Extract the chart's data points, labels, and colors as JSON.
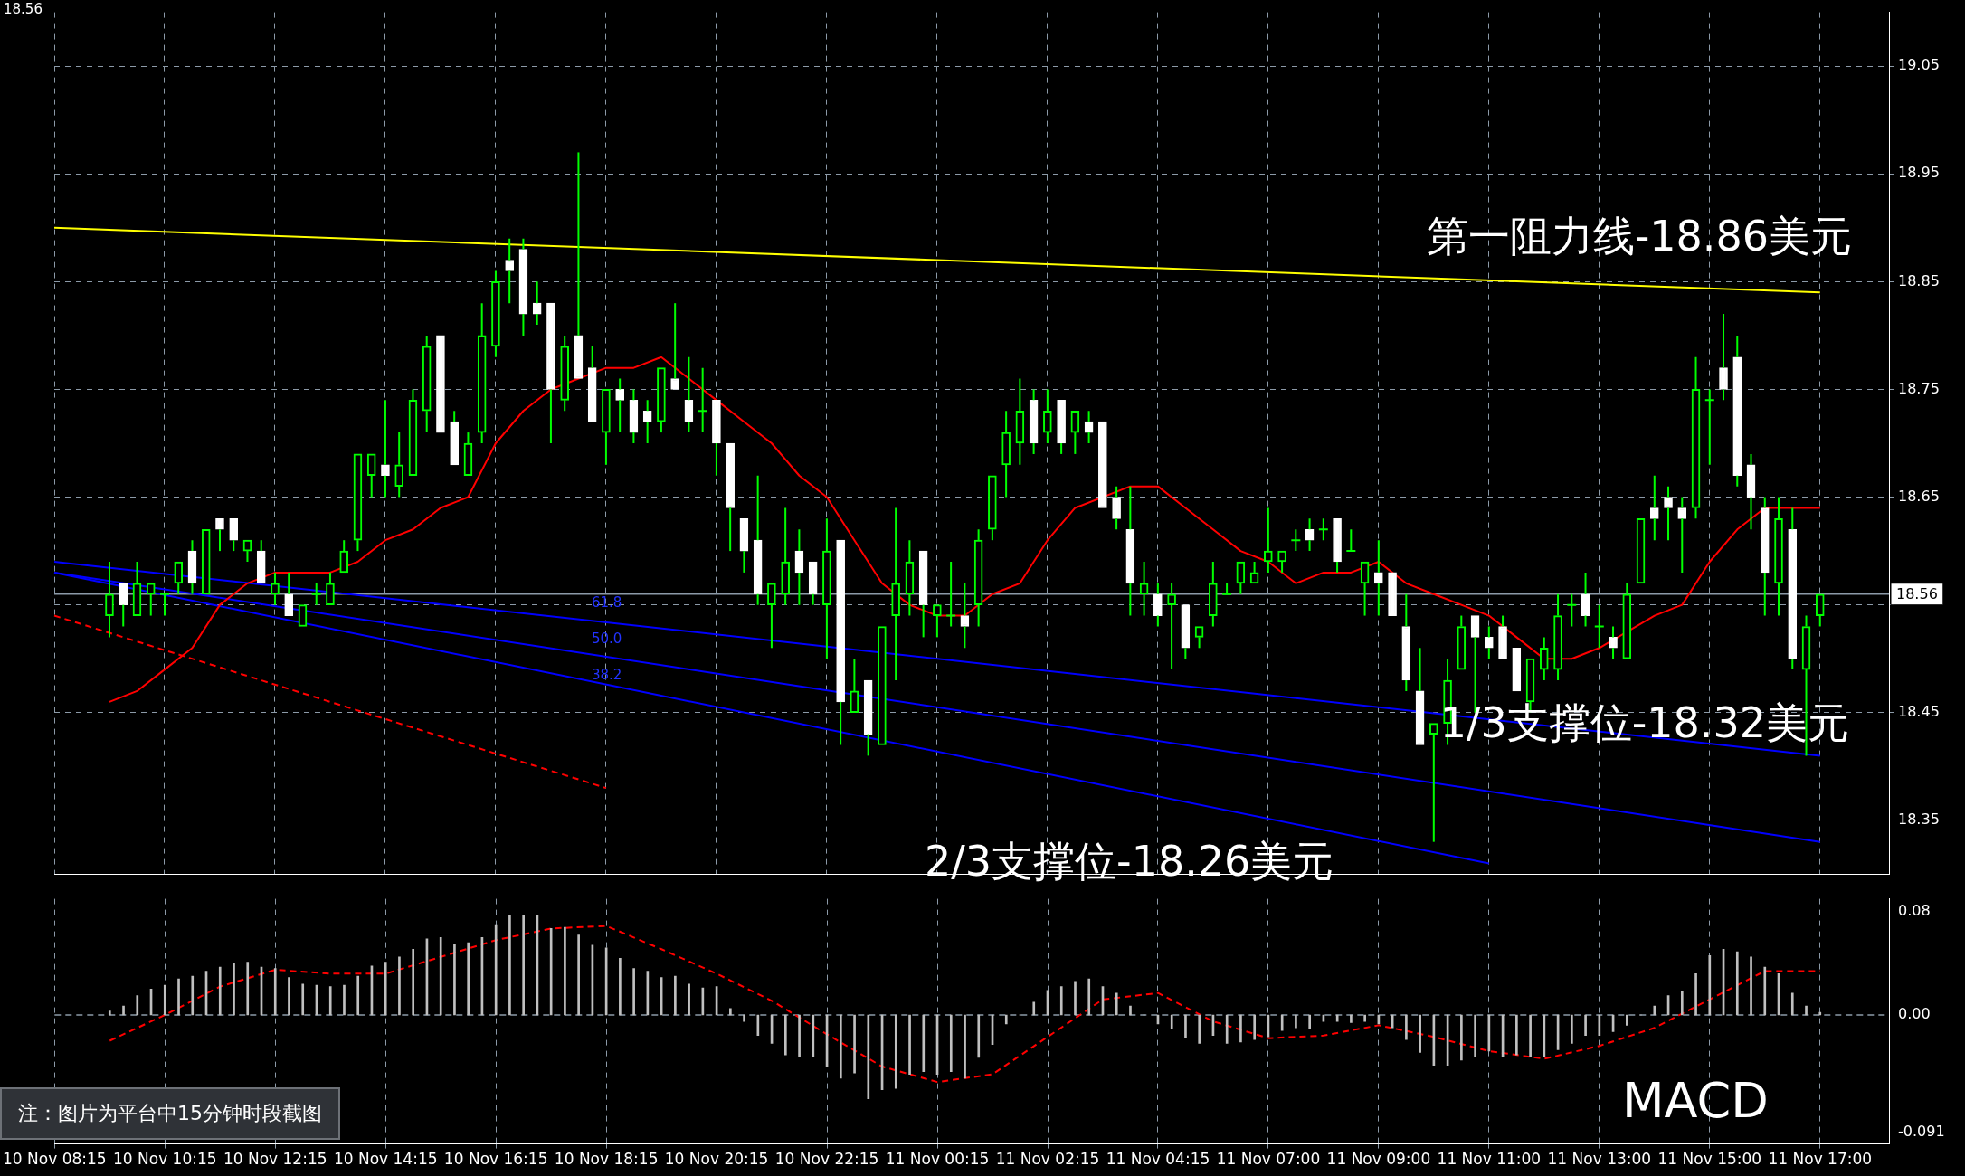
{
  "chart_data": [
    {
      "type": "candlestick",
      "color": "#00ff00",
      "colors": [
        null,
        null,
        null,
        null,
        "#00ff00",
        "#ffffff",
        "#00ff00",
        "#00ff00",
        "#00ff00",
        "#00ff00",
        "#ffffff",
        "#00ff00",
        "#ffffff",
        "#ffffff",
        "#00ff00",
        "#ffffff",
        "#00ff00",
        "#ffffff",
        "#00ff00",
        "#00ff00",
        "#00ff00",
        "#00ff00",
        "#00ff00",
        "#00ff00",
        "#ffffff",
        "#00ff00",
        "#00ff00",
        "#00ff00",
        "#ffffff",
        "#ffffff",
        "#00ff00",
        "#00ff00",
        "#00ff00",
        "#ffffff",
        "#ffffff",
        "#ffffff",
        "#ffffff",
        "#00ff00",
        "#ffffff",
        "#ffffff",
        "#00ff00",
        "#ffffff",
        "#ffffff",
        "#ffffff",
        "#00ff00",
        "#ffffff",
        "#ffffff",
        "#00ff00",
        "#ffffff",
        "#ffffff",
        "#ffffff",
        "#ffffff",
        "#00ff00",
        "#00ff00",
        "#ffffff",
        "#ffffff",
        "#00ff00",
        "#ffffff",
        "#00ff00",
        "#ffffff",
        "#00ff00",
        "#00ff00",
        "#00ff00",
        "#ffffff",
        "#00ff00",
        "#00ff00",
        "#ffffff",
        "#00ff00",
        "#00ff00",
        "#00ff00",
        "#00ff00",
        "#ffffff",
        "#00ff00",
        "#ffffff",
        "#00ff00",
        "#ffffff",
        "#ffffff",
        "#ffffff",
        "#ffffff",
        "#00ff00",
        "#ffffff",
        "#00ff00",
        "#ffffff",
        "#00ff00",
        "#00ff00",
        "#00ff00",
        "#00ff00",
        "#00ff00",
        "#00ff00",
        "#00ff00",
        "#00ff00",
        "#ffffff",
        "#00ff00",
        "#ffffff",
        "#00ff00",
        "#00ff00",
        "#ffffff",
        "#ffffff",
        "#ffffff",
        "#ffffff",
        "#00ff00",
        "#00ff00",
        "#00ff00",
        "#ffffff",
        "#ffffff",
        "#ffffff",
        "#ffffff",
        "#00ff00",
        "#00ff00",
        "#00ff00",
        "#00ff00",
        "#ffffff",
        "#00ff00",
        "#ffffff",
        "#00ff00",
        "#00ff00",
        "#ffffff",
        "#ffffff",
        "#ffffff",
        "#00ff00",
        "#00ff00",
        "#ffffff",
        "#ffffff",
        "#ffffff",
        "#ffffff",
        "#00ff00",
        "#ffffff",
        "#00ff00",
        "#00ff00",
        null,
        null,
        null,
        null,
        null
      ],
      "categories": [
        "10 Nov 08:15",
        null,
        null,
        null,
        null,
        null,
        null,
        null,
        "10 Nov 10:15",
        null,
        null,
        null,
        null,
        null,
        null,
        null,
        "10 Nov 12:15",
        null,
        null,
        null,
        null,
        null,
        null,
        null,
        "10 Nov 14:15",
        null,
        null,
        null,
        null,
        null,
        null,
        null,
        "10 Nov 16:15",
        null,
        null,
        null,
        null,
        null,
        null,
        null,
        "10 Nov 18:15",
        null,
        null,
        null,
        null,
        null,
        null,
        null,
        "10 Nov 20:15",
        null,
        null,
        null,
        null,
        null,
        null,
        null,
        "10 Nov 22:15",
        null,
        null,
        null,
        null,
        null,
        null,
        null,
        "11 Nov 00:15",
        null,
        null,
        null,
        null,
        null,
        null,
        null,
        "11 Nov 02:15",
        null,
        null,
        null,
        null,
        null,
        null,
        null,
        "11 Nov 04:15",
        null,
        null,
        null,
        null,
        null,
        null,
        null,
        "11 Nov 07:00",
        null,
        null,
        null,
        null,
        null,
        null,
        null,
        "11 Nov 09:00",
        null,
        null,
        null,
        null,
        null,
        null,
        null,
        "11 Nov 11:00",
        null,
        null,
        null,
        null,
        null,
        null,
        null,
        "11 Nov 13:00",
        null,
        null,
        null,
        null,
        null,
        null,
        null,
        "11 Nov 15:00",
        null,
        null,
        null,
        null,
        null,
        null,
        null,
        "11 Nov 17:00",
        null,
        null,
        null,
        null,
        null
      ],
      "ohlc": [
        null,
        null,
        null,
        null,
        [
          18.54,
          18.59,
          18.52,
          18.56
        ],
        [
          18.57,
          18.57,
          18.53,
          18.55
        ],
        [
          18.54,
          18.59,
          18.54,
          18.57
        ],
        [
          18.56,
          18.57,
          18.54,
          18.57
        ],
        [
          18.56,
          18.56,
          18.54,
          18.56
        ],
        [
          18.57,
          18.59,
          18.56,
          18.59
        ],
        [
          18.6,
          18.61,
          18.56,
          18.57
        ],
        [
          18.56,
          18.62,
          18.56,
          18.62
        ],
        [
          18.63,
          18.63,
          18.6,
          18.62
        ],
        [
          18.63,
          18.63,
          18.6,
          18.61
        ],
        [
          18.6,
          18.61,
          18.59,
          18.61
        ],
        [
          18.6,
          18.61,
          18.57,
          18.57
        ],
        [
          18.56,
          18.58,
          18.55,
          18.57
        ],
        [
          18.56,
          18.58,
          18.54,
          18.54
        ],
        [
          18.53,
          18.55,
          18.53,
          18.55
        ],
        [
          18.56,
          18.57,
          18.55,
          18.56
        ],
        [
          18.55,
          18.58,
          18.55,
          18.57
        ],
        [
          18.58,
          18.61,
          18.58,
          18.6
        ],
        [
          18.61,
          18.69,
          18.6,
          18.69
        ],
        [
          18.67,
          18.69,
          18.65,
          18.69
        ],
        [
          18.68,
          18.74,
          18.65,
          18.67
        ],
        [
          18.66,
          18.71,
          18.65,
          18.68
        ],
        [
          18.67,
          18.75,
          18.67,
          18.74
        ],
        [
          18.73,
          18.8,
          18.71,
          18.79
        ],
        [
          18.8,
          18.8,
          18.71,
          18.71
        ],
        [
          18.72,
          18.73,
          18.68,
          18.68
        ],
        [
          18.67,
          18.71,
          18.67,
          18.7
        ],
        [
          18.71,
          18.83,
          18.7,
          18.8
        ],
        [
          18.79,
          18.86,
          18.78,
          18.85
        ],
        [
          18.87,
          18.89,
          18.83,
          18.86
        ],
        [
          18.88,
          18.89,
          18.8,
          18.82
        ],
        [
          18.83,
          18.85,
          18.81,
          18.82
        ],
        [
          18.83,
          18.83,
          18.7,
          18.75
        ],
        [
          18.74,
          18.8,
          18.73,
          18.79
        ],
        [
          18.8,
          18.97,
          18.76,
          18.76
        ],
        [
          18.77,
          18.79,
          18.72,
          18.72
        ],
        [
          18.71,
          18.75,
          18.68,
          18.75
        ],
        [
          18.75,
          18.76,
          18.71,
          18.74
        ],
        [
          18.74,
          18.75,
          18.7,
          18.71
        ],
        [
          18.73,
          18.74,
          18.7,
          18.72
        ],
        [
          18.72,
          18.77,
          18.71,
          18.77
        ],
        [
          18.76,
          18.83,
          18.75,
          18.75
        ],
        [
          18.74,
          18.78,
          18.71,
          18.72
        ],
        [
          18.73,
          18.77,
          18.71,
          18.73
        ],
        [
          18.74,
          18.74,
          18.67,
          18.7
        ],
        [
          18.7,
          18.7,
          18.6,
          18.64
        ],
        [
          18.63,
          18.63,
          18.58,
          18.6
        ],
        [
          18.61,
          18.67,
          18.55,
          18.56
        ],
        [
          18.55,
          18.57,
          18.51,
          18.57
        ],
        [
          18.56,
          18.64,
          18.55,
          18.59
        ],
        [
          18.6,
          18.62,
          18.55,
          18.58
        ],
        [
          18.59,
          18.59,
          18.55,
          18.56
        ],
        [
          18.55,
          18.63,
          18.5,
          18.6
        ],
        [
          18.61,
          18.61,
          18.42,
          18.46
        ],
        [
          18.45,
          18.5,
          18.45,
          18.47
        ],
        [
          18.48,
          18.48,
          18.41,
          18.43
        ],
        [
          18.42,
          18.53,
          18.42,
          18.53
        ],
        [
          18.54,
          18.64,
          18.48,
          18.57
        ],
        [
          18.56,
          18.61,
          18.54,
          18.59
        ],
        [
          18.6,
          18.6,
          18.52,
          18.55
        ],
        [
          18.54,
          18.55,
          18.52,
          18.55
        ],
        [
          18.54,
          18.59,
          18.53,
          18.54
        ],
        [
          18.54,
          18.57,
          18.51,
          18.53
        ],
        [
          18.55,
          18.62,
          18.53,
          18.61
        ],
        [
          18.62,
          18.67,
          18.61,
          18.67
        ],
        [
          18.68,
          18.73,
          18.65,
          18.71
        ],
        [
          18.7,
          18.76,
          18.68,
          18.73
        ],
        [
          18.74,
          18.75,
          18.69,
          18.7
        ],
        [
          18.71,
          18.75,
          18.7,
          18.73
        ],
        [
          18.74,
          18.74,
          18.69,
          18.7
        ],
        [
          18.71,
          18.73,
          18.69,
          18.73
        ],
        [
          18.72,
          18.73,
          18.7,
          18.71
        ],
        [
          18.72,
          18.72,
          18.64,
          18.64
        ],
        [
          18.65,
          18.66,
          18.62,
          18.63
        ],
        [
          18.62,
          18.66,
          18.54,
          18.57
        ],
        [
          18.56,
          18.59,
          18.54,
          18.57
        ],
        [
          18.56,
          18.57,
          18.53,
          18.54
        ],
        [
          18.55,
          18.57,
          18.49,
          18.56
        ],
        [
          18.55,
          18.55,
          18.5,
          18.51
        ],
        [
          18.52,
          18.53,
          18.51,
          18.53
        ],
        [
          18.54,
          18.59,
          18.53,
          18.57
        ],
        [
          18.56,
          18.57,
          18.56,
          18.56
        ],
        [
          18.57,
          18.59,
          18.56,
          18.59
        ],
        [
          18.57,
          18.59,
          18.57,
          18.58
        ],
        [
          18.59,
          18.64,
          18.58,
          18.6
        ],
        [
          18.59,
          18.6,
          18.58,
          18.6
        ],
        [
          18.61,
          18.62,
          18.6,
          18.61
        ],
        [
          18.62,
          18.63,
          18.6,
          18.61
        ],
        [
          18.62,
          18.63,
          18.61,
          18.62
        ],
        [
          18.63,
          18.63,
          18.58,
          18.59
        ],
        [
          18.6,
          18.62,
          18.6,
          18.6
        ],
        [
          18.57,
          18.59,
          18.54,
          18.59
        ],
        [
          18.58,
          18.61,
          18.54,
          18.57
        ],
        [
          18.58,
          18.58,
          18.54,
          18.54
        ],
        [
          18.53,
          18.56,
          18.47,
          18.48
        ],
        [
          18.47,
          18.51,
          18.42,
          18.42
        ],
        [
          18.43,
          18.44,
          18.33,
          18.44
        ],
        [
          18.44,
          18.5,
          18.42,
          18.48
        ],
        [
          18.49,
          18.54,
          18.49,
          18.53
        ],
        [
          18.54,
          18.54,
          18.45,
          18.52
        ],
        [
          18.52,
          18.53,
          18.5,
          18.51
        ],
        [
          18.53,
          18.54,
          18.5,
          18.5
        ],
        [
          18.51,
          18.51,
          18.47,
          18.47
        ],
        [
          18.46,
          18.5,
          18.45,
          18.5
        ],
        [
          18.49,
          18.52,
          18.48,
          18.51
        ],
        [
          18.49,
          18.56,
          18.48,
          18.54
        ],
        [
          18.55,
          18.56,
          18.53,
          18.55
        ],
        [
          18.56,
          18.58,
          18.53,
          18.54
        ],
        [
          18.53,
          18.55,
          18.51,
          18.53
        ],
        [
          18.52,
          18.53,
          18.5,
          18.51
        ],
        [
          18.5,
          18.57,
          18.5,
          18.56
        ],
        [
          18.57,
          18.63,
          18.57,
          18.63
        ],
        [
          18.64,
          18.67,
          18.61,
          18.63
        ],
        [
          18.65,
          18.66,
          18.61,
          18.64
        ],
        [
          18.64,
          18.65,
          18.58,
          18.63
        ],
        [
          18.64,
          18.78,
          18.63,
          18.75
        ],
        [
          18.74,
          18.75,
          18.68,
          18.74
        ],
        [
          18.77,
          18.82,
          18.74,
          18.75
        ],
        [
          18.78,
          18.8,
          18.66,
          18.67
        ],
        [
          18.68,
          18.69,
          18.62,
          18.65
        ],
        [
          18.64,
          18.65,
          18.54,
          18.58
        ],
        [
          18.57,
          18.65,
          18.54,
          18.63
        ],
        [
          18.62,
          18.64,
          18.49,
          18.5
        ],
        [
          18.49,
          18.54,
          18.41,
          18.53
        ],
        [
          18.54,
          18.56,
          18.53,
          18.56
        ],
        null,
        null,
        null,
        null,
        null
      ],
      "series": [
        {
          "type": "line",
          "color": "#ff0000",
          "values": [
            null,
            null,
            null,
            null,
            18.46,
            null,
            18.47,
            null,
            18.49,
            null,
            18.51,
            null,
            18.55,
            null,
            18.57,
            null,
            18.58,
            null,
            18.58,
            null,
            18.58,
            null,
            18.59,
            null,
            18.61,
            null,
            18.62,
            null,
            18.64,
            null,
            18.65,
            null,
            18.7,
            null,
            18.73,
            null,
            18.75,
            null,
            null,
            null,
            18.77,
            null,
            18.77,
            null,
            18.78,
            null,
            18.76,
            null,
            18.74,
            null,
            18.72,
            null,
            18.7,
            null,
            18.67,
            null,
            18.65,
            null,
            18.61,
            null,
            18.57,
            null,
            18.55,
            null,
            18.54,
            null,
            18.54,
            null,
            18.56,
            null,
            18.57,
            null,
            18.61,
            null,
            18.64,
            null,
            null,
            null,
            18.66,
            null,
            18.66,
            null,
            18.64,
            null,
            18.62,
            null,
            18.6,
            null,
            18.59,
            null,
            18.57,
            null,
            18.58,
            null,
            18.58,
            null,
            18.59,
            null,
            18.57,
            null,
            18.56,
            null,
            18.55,
            null,
            18.54,
            null,
            18.52,
            null,
            18.5,
            null,
            18.5,
            null,
            18.51,
            null,
            null,
            null,
            18.54,
            null,
            18.55,
            null,
            18.59,
            null,
            18.62,
            null,
            18.64,
            null,
            18.64,
            null,
            18.64,
            null,
            null,
            null,
            null,
            null
          ]
        },
        {
          "type": "line",
          "color": "#ffff00",
          "x": [
            "10 Nov 08:15",
            "11 Nov 17:00"
          ],
          "values": [
            18.9,
            18.84
          ]
        },
        {
          "type": "line",
          "color": "#0000ff",
          "x": [
            "10 Nov 08:15",
            "11 Nov 17:00"
          ],
          "values": [
            18.59,
            18.41
          ]
        },
        {
          "type": "line",
          "color": "#0000ff",
          "x": [
            "10 Nov 08:15",
            "11 Nov 17:00"
          ],
          "values": [
            18.58,
            18.33
          ]
        },
        {
          "type": "line",
          "color": "#0000ff",
          "x": [
            "10 Nov 08:15",
            "11 Nov 11:00"
          ],
          "values": [
            18.58,
            18.31
          ]
        },
        {
          "type": "line",
          "color": "#ff0000",
          "line_style": "dashed",
          "x": [
            "10 Nov 08:15",
            "10 Nov 18:15"
          ],
          "values": [
            18.54,
            18.38
          ]
        }
      ],
      "ylim": [
        18.3,
        19.1
      ],
      "yticks": [
        18.35,
        18.45,
        {
          "value": 18.55,
          "label": null
        },
        18.65,
        18.75,
        18.85,
        18.95,
        19.05
      ],
      "grid": true,
      "tick_labels": "y",
      "ref_lines": [
        {
          "axis": "y",
          "value": 18.56,
          "label": "18.56",
          "color": "#8c9aa8"
        }
      ],
      "annotations": [
        "18.56",
        "第一阻力线-18.86美元",
        "1/3支撑位-18.32美元",
        "2/3支撑位-18.26美元",
        "61.8",
        "50.0",
        "38.2"
      ]
    },
    {
      "type": "bar",
      "categories": [
        "10 Nov 08:15",
        null,
        null,
        null,
        null,
        null,
        null,
        null,
        "10 Nov 10:15",
        null,
        null,
        null,
        null,
        null,
        null,
        null,
        "10 Nov 12:15",
        null,
        null,
        null,
        null,
        null,
        null,
        null,
        "10 Nov 14:15",
        null,
        null,
        null,
        null,
        null,
        null,
        null,
        "10 Nov 16:15",
        null,
        null,
        null,
        null,
        null,
        null,
        null,
        "10 Nov 18:15",
        null,
        null,
        null,
        null,
        null,
        null,
        null,
        "10 Nov 20:15",
        null,
        null,
        null,
        null,
        null,
        null,
        null,
        "10 Nov 22:15",
        null,
        null,
        null,
        null,
        null,
        null,
        null,
        "11 Nov 00:15",
        null,
        null,
        null,
        null,
        null,
        null,
        null,
        "11 Nov 02:15",
        null,
        null,
        null,
        null,
        null,
        null,
        null,
        "11 Nov 04:15",
        null,
        null,
        null,
        null,
        null,
        null,
        null,
        "11 Nov 07:00",
        null,
        null,
        null,
        null,
        null,
        null,
        null,
        "11 Nov 09:00",
        null,
        null,
        null,
        null,
        null,
        null,
        null,
        "11 Nov 11:00",
        null,
        null,
        null,
        null,
        null,
        null,
        null,
        "11 Nov 13:00",
        null,
        null,
        null,
        null,
        null,
        null,
        null,
        "11 Nov 15:00",
        null,
        null,
        null,
        null,
        null,
        null,
        null,
        "11 Nov 17:00",
        null,
        null,
        null,
        null,
        null
      ],
      "series": [
        {
          "type": "bar",
          "color": "#c0c0c0",
          "values": [
            null,
            null,
            null,
            null,
            0.003,
            0.007,
            0.015,
            0.02,
            0.023,
            0.028,
            0.03,
            0.034,
            0.037,
            0.04,
            0.041,
            0.037,
            0.036,
            0.029,
            0.024,
            0.023,
            0.022,
            0.023,
            0.03,
            0.038,
            0.041,
            0.045,
            0.051,
            0.059,
            0.06,
            0.055,
            0.056,
            0.06,
            0.07,
            0.077,
            0.077,
            0.077,
            0.067,
            0.068,
            0.062,
            0.054,
            0.052,
            0.044,
            0.036,
            0.034,
            0.029,
            0.03,
            0.024,
            0.021,
            0.022,
            0.005,
            -0.005,
            -0.016,
            -0.022,
            -0.031,
            -0.032,
            -0.032,
            -0.04,
            -0.049,
            -0.045,
            -0.065,
            -0.058,
            -0.057,
            -0.046,
            -0.044,
            -0.046,
            -0.044,
            -0.049,
            -0.033,
            -0.023,
            -0.007,
            0,
            0.01,
            0.019,
            0.022,
            0.026,
            0.028,
            0.022,
            0.017,
            0.007,
            0,
            -0.007,
            -0.011,
            -0.018,
            -0.022,
            -0.016,
            -0.022,
            -0.021,
            -0.019,
            -0.017,
            -0.012,
            -0.01,
            -0.011,
            -0.005,
            -0.005,
            -0.006,
            -0.005,
            -0.007,
            -0.01,
            -0.019,
            -0.029,
            -0.039,
            -0.039,
            -0.035,
            -0.032,
            -0.028,
            -0.032,
            -0.031,
            -0.032,
            -0.032,
            -0.027,
            -0.022,
            -0.016,
            -0.016,
            -0.013,
            -0.008,
            0,
            0.007,
            0.015,
            0.018,
            0.032,
            0.046,
            0.051,
            0.049,
            0.045,
            0.037,
            0.032,
            0.017,
            0.007,
            0.002,
            null,
            null,
            null,
            null,
            null
          ]
        },
        {
          "type": "line",
          "color": "#ff0000",
          "line_style": "dashed",
          "values": [
            null,
            null,
            null,
            null,
            -0.02,
            null,
            null,
            null,
            0,
            null,
            null,
            null,
            0.022,
            null,
            null,
            null,
            0.035,
            null,
            null,
            null,
            0.032,
            null,
            null,
            null,
            0.032,
            null,
            null,
            null,
            0.045,
            null,
            null,
            null,
            0.058,
            null,
            null,
            null,
            0.067,
            null,
            null,
            null,
            0.069,
            null,
            null,
            null,
            0.051,
            null,
            null,
            null,
            0.032,
            null,
            null,
            null,
            0.011,
            null,
            null,
            null,
            -0.015,
            null,
            null,
            null,
            -0.04,
            null,
            null,
            null,
            -0.052,
            null,
            null,
            null,
            -0.046,
            null,
            null,
            null,
            -0.017,
            null,
            null,
            null,
            0.012,
            null,
            null,
            null,
            0.017,
            null,
            null,
            null,
            -0.005,
            null,
            null,
            null,
            -0.018,
            null,
            null,
            null,
            -0.016,
            null,
            null,
            null,
            -0.008,
            null,
            null,
            null,
            -0.017,
            null,
            null,
            null,
            -0.028,
            null,
            null,
            null,
            -0.034,
            null,
            null,
            null,
            -0.024,
            null,
            null,
            null,
            -0.01,
            null,
            null,
            null,
            0.012,
            null,
            null,
            null,
            0.034,
            null,
            null,
            null,
            0.034,
            null,
            null,
            null,
            null,
            null
          ]
        }
      ],
      "ylim": [
        -0.1,
        0.09
      ],
      "yticks": [
        0.08,
        {
          "value": 0,
          "label": "0.00"
        },
        -0.091
      ],
      "grid": "x",
      "ref_lines": [
        {
          "axis": "y",
          "value": 0,
          "color": "#8c9aa8",
          "line_style": "dashed"
        }
      ],
      "annotations": [
        "MACD",
        "注：图片为平台中15分钟时段截图"
      ]
    }
  ]
}
